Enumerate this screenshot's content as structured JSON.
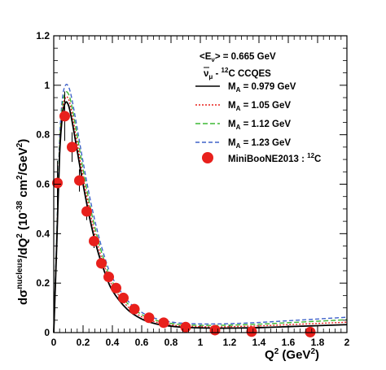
{
  "chart_data": {
    "type": "line",
    "xlabel": "Q",
    "xlabel_sup": "2",
    "xlabel_unit": " (GeV",
    "xlabel_unit_sup": "2",
    "xlabel_close": ")",
    "ylabel": "dσ",
    "ylabel_sup1": "nucleus",
    "ylabel_mid": "/dQ",
    "ylabel_sup2": "2",
    "ylabel_unit": " (10",
    "ylabel_sup3": "-38",
    "ylabel_unit2": " cm",
    "ylabel_sup4": "2",
    "ylabel_unit3": "/GeV",
    "ylabel_sup5": "2",
    "ylabel_close": ")",
    "xlim": [
      0,
      2
    ],
    "ylim": [
      0,
      1.2
    ],
    "x_ticks": [
      "0",
      "0.2",
      "0.4",
      "0.6",
      "0.8",
      "1",
      "1.2",
      "1.4",
      "1.6",
      "1.8",
      "2"
    ],
    "y_ticks": [
      "0",
      "0.2",
      "0.4",
      "0.6",
      "0.8",
      "1",
      "1.2"
    ],
    "legend": {
      "placement": "top-right",
      "header1": "<E",
      "header1_sub": "ν",
      "header1_tail": "> = 0.665 GeV",
      "header2": "ν",
      "header2_sub": "μ",
      "header2_mid": " - ",
      "header2_sup": "12",
      "header2_tail": "C CCQES"
    },
    "series": [
      {
        "name": "M",
        "name_sub": "A",
        "name_tail": " = 0.979 GeV",
        "color": "#000000",
        "dash": "solid",
        "x": [
          0.0,
          0.02,
          0.04,
          0.06,
          0.08,
          0.1,
          0.12,
          0.15,
          0.2,
          0.25,
          0.3,
          0.35,
          0.4,
          0.5,
          0.6,
          0.7,
          0.8,
          0.9,
          1.0,
          1.1,
          1.2,
          1.4,
          1.6,
          1.8,
          2.0
        ],
        "y": [
          0.0,
          0.35,
          0.72,
          0.88,
          0.93,
          0.92,
          0.87,
          0.77,
          0.6,
          0.45,
          0.33,
          0.24,
          0.17,
          0.095,
          0.055,
          0.035,
          0.026,
          0.021,
          0.019,
          0.018,
          0.018,
          0.02,
          0.024,
          0.028,
          0.032
        ]
      },
      {
        "name": "M",
        "name_sub": "A",
        "name_tail": " = 1.05 GeV",
        "color": "#e8201c",
        "dash": "2,2",
        "x": [
          0.0,
          0.02,
          0.04,
          0.06,
          0.08,
          0.1,
          0.12,
          0.15,
          0.2,
          0.25,
          0.3,
          0.35,
          0.4,
          0.5,
          0.6,
          0.7,
          0.8,
          0.9,
          1.0,
          1.1,
          1.2,
          1.4,
          1.6,
          1.8,
          2.0
        ],
        "y": [
          0.0,
          0.36,
          0.74,
          0.9,
          0.95,
          0.945,
          0.9,
          0.8,
          0.63,
          0.48,
          0.355,
          0.26,
          0.19,
          0.108,
          0.064,
          0.042,
          0.031,
          0.026,
          0.024,
          0.023,
          0.024,
          0.027,
          0.032,
          0.037,
          0.042
        ]
      },
      {
        "name": "M",
        "name_sub": "A",
        "name_tail": " = 1.12 GeV",
        "color": "#3cb833",
        "dash": "6,3",
        "x": [
          0.0,
          0.02,
          0.04,
          0.06,
          0.08,
          0.1,
          0.12,
          0.15,
          0.2,
          0.25,
          0.3,
          0.35,
          0.4,
          0.5,
          0.6,
          0.7,
          0.8,
          0.9,
          1.0,
          1.1,
          1.2,
          1.4,
          1.6,
          1.8,
          2.0
        ],
        "y": [
          0.0,
          0.37,
          0.76,
          0.92,
          0.97,
          0.965,
          0.925,
          0.83,
          0.66,
          0.505,
          0.38,
          0.28,
          0.205,
          0.12,
          0.073,
          0.049,
          0.037,
          0.031,
          0.029,
          0.029,
          0.03,
          0.034,
          0.04,
          0.046,
          0.052
        ]
      },
      {
        "name": "M",
        "name_sub": "A",
        "name_tail": " = 1.23 GeV",
        "color": "#3e62c9",
        "dash": "5,3",
        "x": [
          0.0,
          0.02,
          0.04,
          0.06,
          0.08,
          0.1,
          0.12,
          0.15,
          0.2,
          0.25,
          0.3,
          0.35,
          0.4,
          0.5,
          0.6,
          0.7,
          0.8,
          0.9,
          1.0,
          1.1,
          1.2,
          1.4,
          1.6,
          1.8,
          2.0
        ],
        "y": [
          0.0,
          0.38,
          0.78,
          0.95,
          1.0,
          0.995,
          0.955,
          0.86,
          0.69,
          0.535,
          0.405,
          0.3,
          0.222,
          0.132,
          0.082,
          0.056,
          0.043,
          0.037,
          0.035,
          0.035,
          0.036,
          0.041,
          0.048,
          0.055,
          0.062
        ]
      }
    ],
    "data_points": {
      "name": "MiniBooNE2013 : ",
      "name_sup": "12",
      "name_tail": "C",
      "color": "#e8201c",
      "x": [
        0.025,
        0.075,
        0.125,
        0.175,
        0.225,
        0.275,
        0.325,
        0.375,
        0.425,
        0.475,
        0.55,
        0.65,
        0.75,
        0.9,
        1.1,
        1.35,
        1.75
      ],
      "y": [
        0.605,
        0.875,
        0.75,
        0.615,
        0.49,
        0.37,
        0.28,
        0.225,
        0.18,
        0.14,
        0.095,
        0.06,
        0.04,
        0.022,
        0.01,
        0.004,
        0.002
      ],
      "yerr": [
        0.09,
        0.1,
        0.06,
        0.045,
        0.035,
        0.028,
        0.022,
        0.018,
        0.015,
        0.013,
        0.01,
        0.008,
        0.006,
        0.004,
        0.003,
        0.002,
        0.001
      ]
    }
  }
}
